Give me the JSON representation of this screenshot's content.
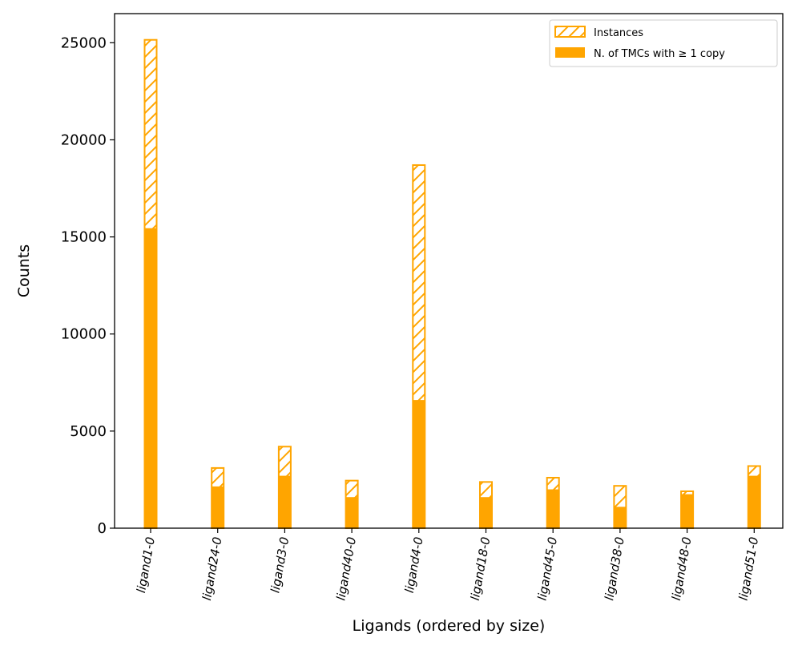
{
  "chart_data": {
    "type": "bar",
    "title": "",
    "xlabel": "Ligands (ordered by size)",
    "ylabel": "Counts",
    "ylim": [
      0,
      26500
    ],
    "yticks": [
      0,
      5000,
      10000,
      15000,
      20000,
      25000
    ],
    "categories": [
      "ligand1-0",
      "ligand24-0",
      "ligand3-0",
      "ligand40-0",
      "ligand4-0",
      "ligand18-0",
      "ligand45-0",
      "ligand38-0",
      "ligand48-0",
      "ligand51-0"
    ],
    "series": [
      {
        "name": "Instances",
        "style": "hatched-outline",
        "values": [
          25150,
          3100,
          4200,
          2450,
          18700,
          2380,
          2600,
          2180,
          1900,
          3200
        ]
      },
      {
        "name": "N. of TMCs with ≥ 1 copy",
        "style": "filled",
        "values": [
          15450,
          2150,
          2700,
          1600,
          6600,
          1600,
          2000,
          1100,
          1750,
          2700
        ]
      }
    ],
    "colors": {
      "bar": "#FFA500",
      "axis": "#000000"
    },
    "legend_position": "top-right",
    "grid": false
  }
}
